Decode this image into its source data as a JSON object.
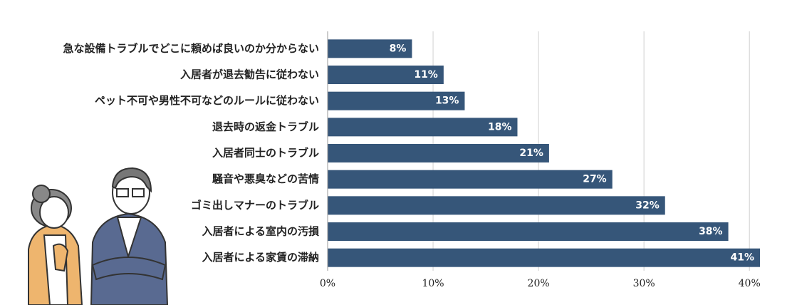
{
  "chart_data": {
    "type": "bar",
    "orientation": "horizontal",
    "categories": [
      "急な設備トラブルでどこに頼めば良いのか分からない",
      "入居者が退去勧告に従わない",
      "ペット不可や男性不可などのルールに従わない",
      "退去時の返金トラブル",
      "入居者同士のトラブル",
      "騒音や悪臭などの苦情",
      "ゴミ出しマナーのトラブル",
      "入居者による室内の汚損",
      "入居者による家賃の滞納"
    ],
    "values": [
      8,
      11,
      13,
      18,
      21,
      27,
      32,
      38,
      41
    ],
    "value_labels": [
      "8%",
      "11%",
      "13%",
      "18%",
      "21%",
      "27%",
      "32%",
      "38%",
      "41%"
    ],
    "color": "#365679",
    "xlim": [
      0,
      41
    ],
    "xticks": [
      {
        "value": 0,
        "label": "0%"
      },
      {
        "value": 10,
        "label": "10%"
      },
      {
        "value": 20,
        "label": "20%"
      },
      {
        "value": 30,
        "label": "30%"
      },
      {
        "value": 40,
        "label": "40%"
      }
    ],
    "grid": true
  }
}
